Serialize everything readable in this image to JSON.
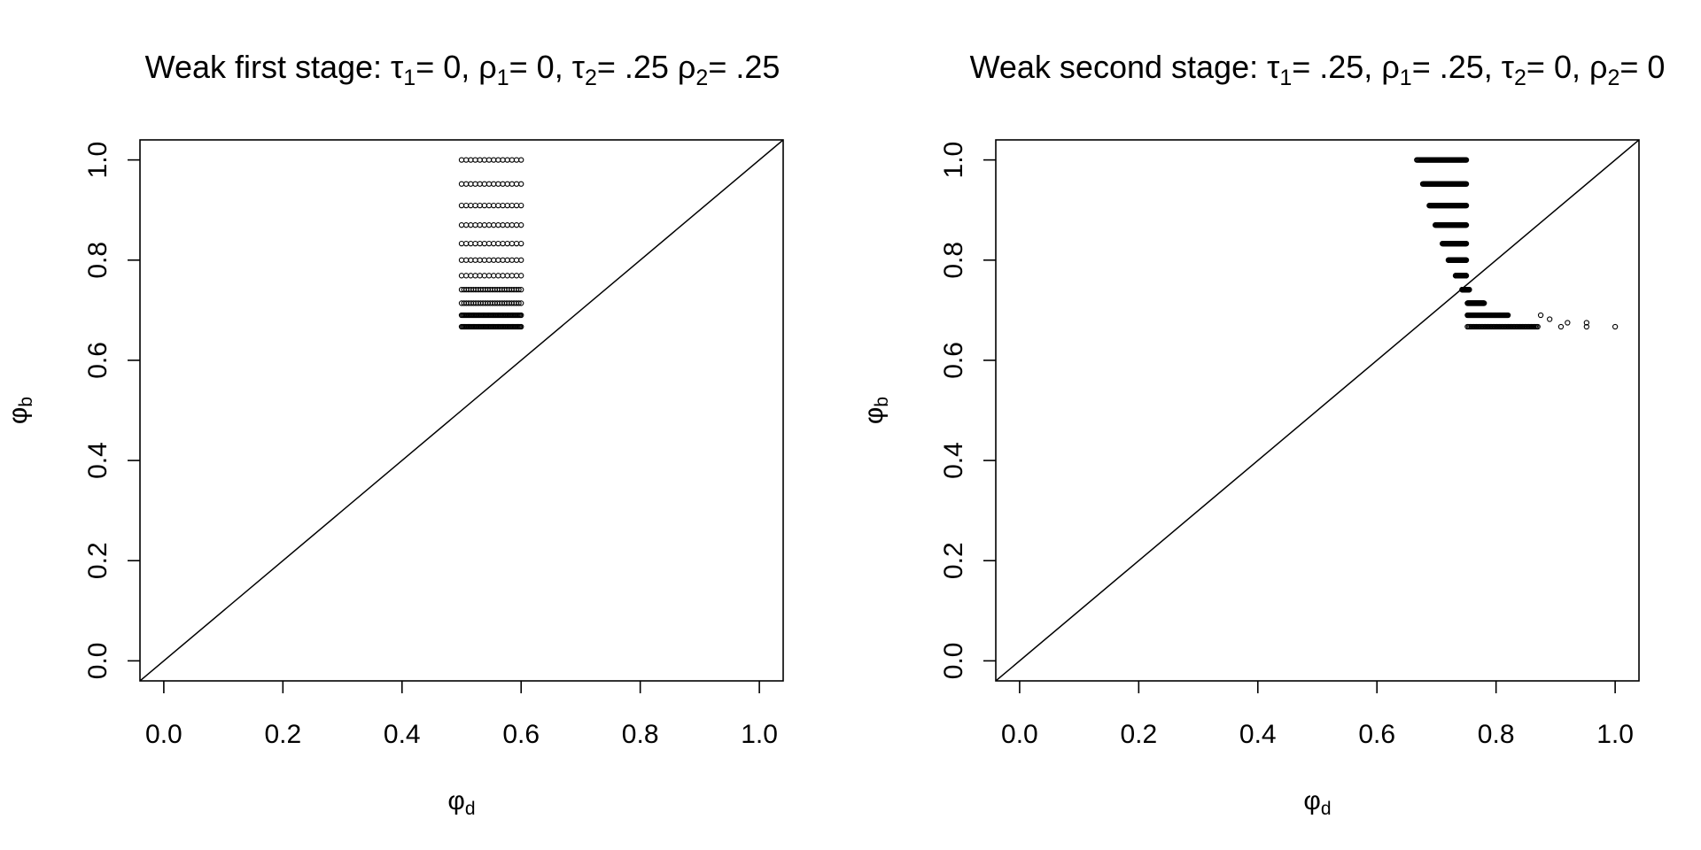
{
  "chart_data": [
    {
      "type": "scatter",
      "title": {
        "prefix": "Weak first stage: ",
        "parts": [
          {
            "sym": "τ",
            "sub": "1",
            "val": "= 0, "
          },
          {
            "sym": "ρ",
            "sub": "1",
            "val": "= 0, "
          },
          {
            "sym": "τ",
            "sub": "2",
            "val": "= .25 "
          },
          {
            "sym": "ρ",
            "sub": "2",
            "val": "= .25"
          }
        ]
      },
      "xlabel": {
        "sym": "φ",
        "sub": "d"
      },
      "ylabel": {
        "sym": "φ",
        "sub": "b"
      },
      "xlim": [
        0,
        1
      ],
      "ylim": [
        0,
        1
      ],
      "xticks": [
        "0.0",
        "0.2",
        "0.4",
        "0.6",
        "0.8",
        "1.0"
      ],
      "yticks": [
        "0.0",
        "0.2",
        "0.4",
        "0.6",
        "0.8",
        "1.0"
      ],
      "reference_line": {
        "slope": 1,
        "intercept": 0
      },
      "point_rows": [
        {
          "y": 1.0,
          "x_from": 0.5,
          "x_to": 0.6,
          "density": "sparse"
        },
        {
          "y": 0.952,
          "x_from": 0.5,
          "x_to": 0.6,
          "density": "sparse"
        },
        {
          "y": 0.909,
          "x_from": 0.5,
          "x_to": 0.6,
          "density": "sparse"
        },
        {
          "y": 0.87,
          "x_from": 0.5,
          "x_to": 0.6,
          "density": "sparse"
        },
        {
          "y": 0.833,
          "x_from": 0.5,
          "x_to": 0.6,
          "density": "sparse"
        },
        {
          "y": 0.8,
          "x_from": 0.5,
          "x_to": 0.6,
          "density": "sparse"
        },
        {
          "y": 0.769,
          "x_from": 0.5,
          "x_to": 0.6,
          "density": "sparse"
        },
        {
          "y": 0.741,
          "x_from": 0.5,
          "x_to": 0.6,
          "density": "medium"
        },
        {
          "y": 0.714,
          "x_from": 0.5,
          "x_to": 0.6,
          "density": "medium"
        },
        {
          "y": 0.69,
          "x_from": 0.5,
          "x_to": 0.6,
          "density": "dense"
        },
        {
          "y": 0.667,
          "x_from": 0.5,
          "x_to": 0.6,
          "density": "dense"
        }
      ]
    },
    {
      "type": "scatter",
      "title": {
        "prefix": "Weak second stage: ",
        "parts": [
          {
            "sym": "τ",
            "sub": "1",
            "val": "= .25, "
          },
          {
            "sym": "ρ",
            "sub": "1",
            "val": "= .25, "
          },
          {
            "sym": "τ",
            "sub": "2",
            "val": "= 0, "
          },
          {
            "sym": "ρ",
            "sub": "2",
            "val": "= 0"
          }
        ]
      },
      "xlabel": {
        "sym": "φ",
        "sub": "d"
      },
      "ylabel": {
        "sym": "φ",
        "sub": "b"
      },
      "xlim": [
        0,
        1
      ],
      "ylim": [
        0,
        1
      ],
      "xticks": [
        "0.0",
        "0.2",
        "0.4",
        "0.6",
        "0.8",
        "1.0"
      ],
      "yticks": [
        "0.0",
        "0.2",
        "0.4",
        "0.6",
        "0.8",
        "1.0"
      ],
      "reference_line": {
        "slope": 1,
        "intercept": 0
      },
      "point_rows": [
        {
          "y": 1.0,
          "x_from": 0.667,
          "x_to": 0.75,
          "density": "dense"
        },
        {
          "y": 0.952,
          "x_from": 0.677,
          "x_to": 0.75,
          "density": "dense"
        },
        {
          "y": 0.909,
          "x_from": 0.688,
          "x_to": 0.75,
          "density": "dense"
        },
        {
          "y": 0.87,
          "x_from": 0.698,
          "x_to": 0.75,
          "density": "dense"
        },
        {
          "y": 0.833,
          "x_from": 0.71,
          "x_to": 0.75,
          "density": "dense"
        },
        {
          "y": 0.8,
          "x_from": 0.72,
          "x_to": 0.75,
          "density": "dense"
        },
        {
          "y": 0.769,
          "x_from": 0.732,
          "x_to": 0.75,
          "density": "dense"
        },
        {
          "y": 0.741,
          "x_from": 0.743,
          "x_to": 0.755,
          "density": "dense"
        },
        {
          "y": 0.714,
          "x_from": 0.752,
          "x_to": 0.78,
          "density": "dense"
        },
        {
          "y": 0.69,
          "x_from": 0.752,
          "x_to": 0.82,
          "density": "dense"
        },
        {
          "y": 0.667,
          "x_from": 0.752,
          "x_to": 0.87,
          "density": "dense"
        }
      ],
      "extra_points": [
        {
          "x": 0.875,
          "y": 0.69
        },
        {
          "x": 0.89,
          "y": 0.682
        },
        {
          "x": 0.909,
          "y": 0.667
        },
        {
          "x": 0.92,
          "y": 0.675
        },
        {
          "x": 0.952,
          "y": 0.667
        },
        {
          "x": 0.952,
          "y": 0.675
        },
        {
          "x": 1.0,
          "y": 0.667
        }
      ]
    }
  ]
}
